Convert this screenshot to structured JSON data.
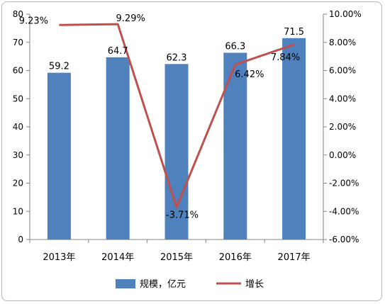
{
  "chart_data": {
    "type": "bar",
    "categories": [
      "2013年",
      "2014年",
      "2015年",
      "2016年",
      "2017年"
    ],
    "series": [
      {
        "name": "规模，亿元",
        "type": "bar",
        "axis": "left",
        "values": [
          59.2,
          64.7,
          62.3,
          66.3,
          71.5
        ],
        "labels": [
          "59.2",
          "64.7",
          "62.3",
          "66.3",
          "71.5"
        ],
        "color": "#4f81bd"
      },
      {
        "name": "增长",
        "type": "line",
        "axis": "right",
        "values": [
          9.23,
          9.29,
          -3.71,
          6.42,
          7.84
        ],
        "labels": [
          "9.23%",
          "9.29%",
          "-3.71%",
          "6.42%",
          "7.84%"
        ],
        "color": "#c0504d"
      }
    ],
    "y_left": {
      "min": 0,
      "max": 80,
      "step": 10,
      "ticks": [
        "0",
        "10",
        "20",
        "30",
        "40",
        "50",
        "60",
        "70",
        "80"
      ]
    },
    "y_right": {
      "min": -6,
      "max": 10,
      "step": 2,
      "ticks": [
        "-6.00%",
        "-4.00%",
        "-2.00%",
        "0.00%",
        "2.00%",
        "4.00%",
        "6.00%",
        "8.00%",
        "10.00%"
      ]
    },
    "legend_position": "bottom",
    "grid": false
  }
}
